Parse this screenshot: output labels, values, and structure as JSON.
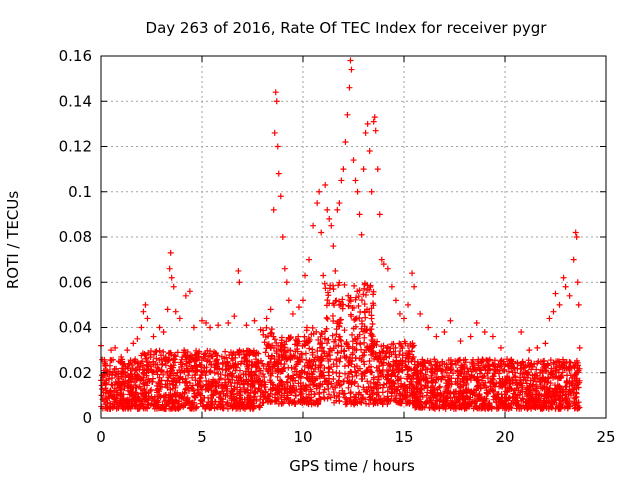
{
  "chart_data": {
    "type": "scatter",
    "title": "Day 263 of 2016, Rate Of TEC Index for receiver pygr",
    "xlabel": "GPS time / hours",
    "ylabel": "ROTI / TECUs",
    "xlim": [
      0,
      25
    ],
    "ylim": [
      0,
      0.16
    ],
    "xticks": [
      0,
      5,
      10,
      15,
      20,
      25
    ],
    "xtick_labels": [
      "0",
      "5",
      "10",
      "15",
      "20",
      "25"
    ],
    "yticks": [
      0,
      0.02,
      0.04,
      0.06,
      0.08,
      0.1,
      0.12,
      0.14,
      0.16
    ],
    "ytick_labels": [
      "0",
      "0.02",
      "0.04",
      "0.06",
      "0.08",
      "0.1",
      "0.12",
      "0.14",
      "0.16"
    ],
    "grid": true,
    "marker": "plus",
    "color": "#ff0000",
    "series": [
      {
        "name": "ROTI",
        "points": [
          [
            0.0,
            0.032
          ],
          [
            0.2,
            0.024
          ],
          [
            0.5,
            0.03
          ],
          [
            0.7,
            0.031
          ],
          [
            1.0,
            0.027
          ],
          [
            1.3,
            0.03
          ],
          [
            1.6,
            0.033
          ],
          [
            1.8,
            0.035
          ],
          [
            2.0,
            0.04
          ],
          [
            2.1,
            0.047
          ],
          [
            2.2,
            0.05
          ],
          [
            2.3,
            0.044
          ],
          [
            2.6,
            0.036
          ],
          [
            2.9,
            0.04
          ],
          [
            3.1,
            0.038
          ],
          [
            3.3,
            0.048
          ],
          [
            3.4,
            0.066
          ],
          [
            3.45,
            0.073
          ],
          [
            3.5,
            0.062
          ],
          [
            3.6,
            0.058
          ],
          [
            3.7,
            0.047
          ],
          [
            3.9,
            0.044
          ],
          [
            4.2,
            0.054
          ],
          [
            4.4,
            0.056
          ],
          [
            4.6,
            0.04
          ],
          [
            5.0,
            0.043
          ],
          [
            5.2,
            0.042
          ],
          [
            5.4,
            0.04
          ],
          [
            5.8,
            0.041
          ],
          [
            6.3,
            0.042
          ],
          [
            6.6,
            0.045
          ],
          [
            6.8,
            0.065
          ],
          [
            6.85,
            0.06
          ],
          [
            7.2,
            0.041
          ],
          [
            7.6,
            0.043
          ],
          [
            7.9,
            0.039
          ],
          [
            8.2,
            0.044
          ],
          [
            8.4,
            0.048
          ],
          [
            8.55,
            0.092
          ],
          [
            8.6,
            0.126
          ],
          [
            8.65,
            0.144
          ],
          [
            8.7,
            0.14
          ],
          [
            8.75,
            0.12
          ],
          [
            8.8,
            0.108
          ],
          [
            8.9,
            0.098
          ],
          [
            9.0,
            0.08
          ],
          [
            9.1,
            0.066
          ],
          [
            9.2,
            0.06
          ],
          [
            9.3,
            0.052
          ],
          [
            9.5,
            0.046
          ],
          [
            9.8,
            0.049
          ],
          [
            10.0,
            0.052
          ],
          [
            10.1,
            0.063
          ],
          [
            10.3,
            0.07
          ],
          [
            10.5,
            0.085
          ],
          [
            10.7,
            0.095
          ],
          [
            10.8,
            0.1
          ],
          [
            10.9,
            0.082
          ],
          [
            11.0,
            0.063
          ],
          [
            11.1,
            0.103
          ],
          [
            11.2,
            0.092
          ],
          [
            11.3,
            0.088
          ],
          [
            11.4,
            0.085
          ],
          [
            11.5,
            0.076
          ],
          [
            11.6,
            0.065
          ],
          [
            11.7,
            0.092
          ],
          [
            11.8,
            0.095
          ],
          [
            11.9,
            0.105
          ],
          [
            12.0,
            0.11
          ],
          [
            12.1,
            0.122
          ],
          [
            12.2,
            0.134
          ],
          [
            12.3,
            0.146
          ],
          [
            12.35,
            0.158
          ],
          [
            12.4,
            0.154
          ],
          [
            12.5,
            0.114
          ],
          [
            12.6,
            0.105
          ],
          [
            12.7,
            0.1
          ],
          [
            12.8,
            0.09
          ],
          [
            12.9,
            0.081
          ],
          [
            13.0,
            0.11
          ],
          [
            13.1,
            0.126
          ],
          [
            13.2,
            0.13
          ],
          [
            13.3,
            0.118
          ],
          [
            13.4,
            0.1
          ],
          [
            13.5,
            0.131
          ],
          [
            13.55,
            0.133
          ],
          [
            13.6,
            0.127
          ],
          [
            13.7,
            0.11
          ],
          [
            13.8,
            0.09
          ],
          [
            13.9,
            0.07
          ],
          [
            14.0,
            0.068
          ],
          [
            14.2,
            0.066
          ],
          [
            14.4,
            0.058
          ],
          [
            14.6,
            0.052
          ],
          [
            14.8,
            0.046
          ],
          [
            15.0,
            0.044
          ],
          [
            15.2,
            0.05
          ],
          [
            15.4,
            0.064
          ],
          [
            15.5,
            0.058
          ],
          [
            15.8,
            0.046
          ],
          [
            16.2,
            0.04
          ],
          [
            16.6,
            0.036
          ],
          [
            17.0,
            0.038
          ],
          [
            17.3,
            0.043
          ],
          [
            17.8,
            0.034
          ],
          [
            18.3,
            0.036
          ],
          [
            18.6,
            0.042
          ],
          [
            19.0,
            0.038
          ],
          [
            19.4,
            0.036
          ],
          [
            19.8,
            0.031
          ],
          [
            20.1,
            0.026
          ],
          [
            20.4,
            0.025
          ],
          [
            20.8,
            0.038
          ],
          [
            21.2,
            0.03
          ],
          [
            21.6,
            0.031
          ],
          [
            22.0,
            0.033
          ],
          [
            22.2,
            0.044
          ],
          [
            22.4,
            0.047
          ],
          [
            22.5,
            0.055
          ],
          [
            22.7,
            0.05
          ],
          [
            22.9,
            0.062
          ],
          [
            23.0,
            0.058
          ],
          [
            23.2,
            0.054
          ],
          [
            23.4,
            0.07
          ],
          [
            23.5,
            0.082
          ],
          [
            23.55,
            0.08
          ],
          [
            23.6,
            0.06
          ],
          [
            23.65,
            0.05
          ],
          [
            23.7,
            0.031
          ]
        ],
        "density_bands": [
          {
            "x_range": [
              0.0,
              2.0
            ],
            "y_range": [
              0.004,
              0.026
            ]
          },
          {
            "x_range": [
              2.0,
              8.0
            ],
            "y_range": [
              0.004,
              0.03
            ]
          },
          {
            "x_range": [
              8.0,
              8.5
            ],
            "y_range": [
              0.006,
              0.04
            ]
          },
          {
            "x_range": [
              8.5,
              10.0
            ],
            "y_range": [
              0.006,
              0.036
            ]
          },
          {
            "x_range": [
              10.0,
              11.0
            ],
            "y_range": [
              0.006,
              0.04
            ]
          },
          {
            "x_range": [
              11.0,
              13.5
            ],
            "y_range": [
              0.006,
              0.06
            ]
          },
          {
            "x_range": [
              13.5,
              15.5
            ],
            "y_range": [
              0.006,
              0.034
            ]
          },
          {
            "x_range": [
              15.5,
              22.0
            ],
            "y_range": [
              0.004,
              0.026
            ]
          },
          {
            "x_range": [
              22.0,
              23.7
            ],
            "y_range": [
              0.004,
              0.026
            ]
          }
        ]
      }
    ]
  }
}
